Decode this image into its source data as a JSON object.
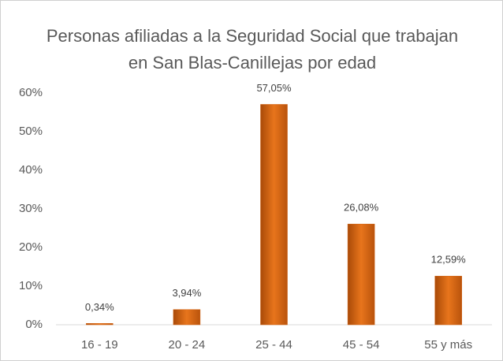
{
  "chart_data": {
    "type": "bar",
    "title": "Personas afiliadas a la Seguridad Social que trabajan en San Blas-Canillejas por edad",
    "categories": [
      "16 - 19",
      "20 - 24",
      "25 - 44",
      "45 - 54",
      "55 y más"
    ],
    "values": [
      0.34,
      3.94,
      57.05,
      26.08,
      12.59
    ],
    "value_labels": [
      "0,34%",
      "3,94%",
      "57,05%",
      "26,08%",
      "12,59%"
    ],
    "color": "#d2610f",
    "ylim": [
      0,
      60
    ],
    "yticks": [
      {
        "value": 0,
        "label": "0%"
      },
      {
        "value": 10,
        "label": "10%"
      },
      {
        "value": 20,
        "label": "20%"
      },
      {
        "value": 30,
        "label": "30%"
      },
      {
        "value": 40,
        "label": "40%"
      },
      {
        "value": 50,
        "label": "50%"
      },
      {
        "value": 60,
        "label": "60%"
      }
    ],
    "grid": false
  }
}
